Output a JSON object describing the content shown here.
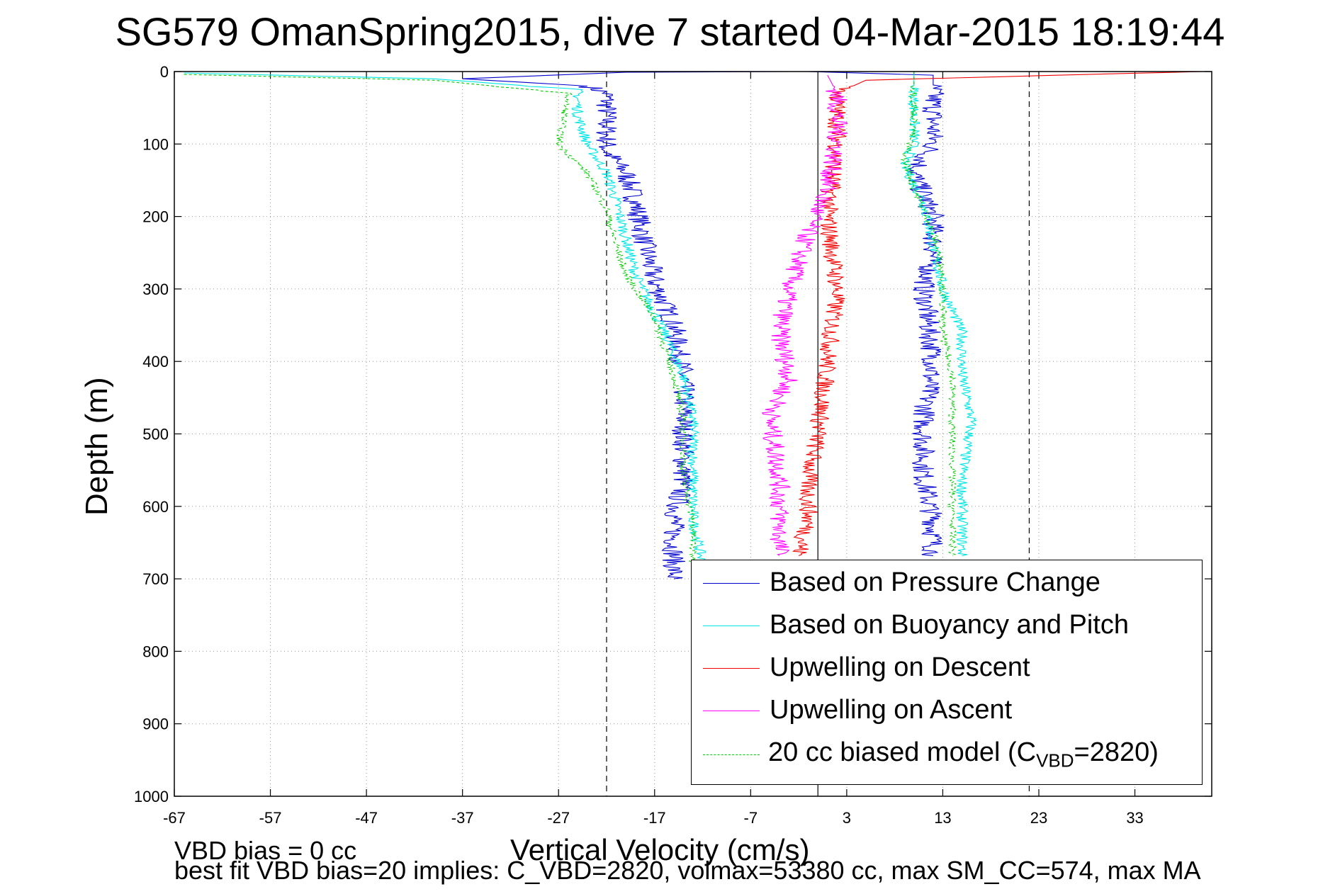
{
  "chart_data": {
    "type": "line",
    "title": "SG579 OmanSpring2015, dive 7 started 04-Mar-2015 18:19:44",
    "xlabel": "Vertical Velocity (cm/s)",
    "ylabel": "Depth (m)",
    "xlim": [
      -67,
      41
    ],
    "ylim": [
      0,
      1000
    ],
    "y_reversed": true,
    "grid": true,
    "legend_position": "bottom-right",
    "x_ticks": [
      "-67",
      "-57",
      "-47",
      "-37",
      "-27",
      "-17",
      "-7",
      "3",
      "13",
      "23",
      "33"
    ],
    "y_ticks": [
      "0",
      "100",
      "200",
      "300",
      "400",
      "500",
      "600",
      "700",
      "800",
      "900",
      "1000"
    ],
    "reference_lines": [
      {
        "x": -22,
        "style": "dashed"
      },
      {
        "x": 0,
        "style": "solid"
      },
      {
        "x": 22,
        "style": "dashed"
      }
    ],
    "series": [
      {
        "name": "Based on Pressure Change",
        "color": "#0000cc",
        "style": "solid",
        "noise": 1.2,
        "points": [
          [
            -3,
            0
          ],
          [
            -20,
            1
          ],
          [
            -37,
            10
          ],
          [
            -24,
            20
          ],
          [
            -22,
            30
          ],
          [
            -22,
            60
          ],
          [
            -22,
            110
          ],
          [
            -20,
            140
          ],
          [
            -19,
            180
          ],
          [
            -18,
            240
          ],
          [
            -17,
            290
          ],
          [
            -15,
            350
          ],
          [
            -14,
            420
          ],
          [
            -14,
            480
          ],
          [
            -14,
            560
          ],
          [
            -15,
            620
          ],
          [
            -15,
            700
          ]
        ],
        "points2": [
          [
            -1,
            0
          ],
          [
            12,
            5
          ],
          [
            12,
            100
          ],
          [
            10,
            140
          ],
          [
            12,
            200
          ],
          [
            12,
            250
          ],
          [
            11,
            300
          ],
          [
            12,
            400
          ],
          [
            11,
            480
          ],
          [
            11,
            560
          ],
          [
            12,
            620
          ],
          [
            12,
            668
          ]
        ]
      },
      {
        "name": "Based on Buoyancy and Pitch",
        "color": "#00e5e5",
        "style": "solid",
        "noise": 0.6,
        "points": [
          [
            -66,
            2
          ],
          [
            -40,
            10
          ],
          [
            -25,
            25
          ],
          [
            -25,
            60
          ],
          [
            -24,
            100
          ],
          [
            -22,
            140
          ],
          [
            -21,
            180
          ],
          [
            -20,
            230
          ],
          [
            -19,
            280
          ],
          [
            -16,
            360
          ],
          [
            -14,
            420
          ],
          [
            -13,
            480
          ],
          [
            -13,
            560
          ],
          [
            -13,
            620
          ],
          [
            -12,
            680
          ]
        ],
        "points2": [
          [
            10,
            0
          ],
          [
            10,
            100
          ],
          [
            9,
            130
          ],
          [
            11,
            180
          ],
          [
            12,
            240
          ],
          [
            13,
            300
          ],
          [
            15,
            360
          ],
          [
            15,
            420
          ],
          [
            16,
            480
          ],
          [
            15,
            560
          ],
          [
            15,
            620
          ],
          [
            15,
            668
          ]
        ]
      },
      {
        "name": "Upwelling on Descent",
        "color": "#ee0000",
        "style": "solid",
        "noise": 1.0,
        "points": [
          [
            40,
            0
          ],
          [
            28,
            4
          ],
          [
            5,
            12
          ],
          [
            2,
            30
          ],
          [
            2,
            100
          ],
          [
            1,
            200
          ],
          [
            2,
            300
          ],
          [
            1,
            400
          ],
          [
            0,
            500
          ],
          [
            -1,
            560
          ],
          [
            -1,
            620
          ],
          [
            -2,
            668
          ]
        ]
      },
      {
        "name": "Upwelling on Ascent",
        "color": "#ff00ff",
        "style": "solid",
        "noise": 1.1,
        "points": [
          [
            1,
            5
          ],
          [
            2,
            30
          ],
          [
            2,
            100
          ],
          [
            1,
            160
          ],
          [
            -1,
            220
          ],
          [
            -3,
            300
          ],
          [
            -4,
            360
          ],
          [
            -3,
            420
          ],
          [
            -5,
            480
          ],
          [
            -4,
            560
          ],
          [
            -4,
            620
          ],
          [
            -4,
            668
          ]
        ]
      },
      {
        "name": "20 cc biased model (C_VBD=2820)",
        "color": "#00cc00",
        "style": "dashed",
        "noise": 0.4,
        "points": [
          [
            -66,
            4
          ],
          [
            -40,
            12
          ],
          [
            -26,
            30
          ],
          [
            -27,
            100
          ],
          [
            -24,
            140
          ],
          [
            -22,
            190
          ],
          [
            -21,
            240
          ],
          [
            -20,
            280
          ],
          [
            -17,
            340
          ],
          [
            -15,
            420
          ],
          [
            -14,
            480
          ],
          [
            -14,
            560
          ],
          [
            -13,
            620
          ],
          [
            -13,
            680
          ]
        ],
        "points2": [
          [
            10,
            0
          ],
          [
            10,
            80
          ],
          [
            9,
            120
          ],
          [
            10,
            160
          ],
          [
            12,
            220
          ],
          [
            13,
            280
          ],
          [
            13,
            360
          ],
          [
            14,
            420
          ],
          [
            14,
            480
          ],
          [
            14,
            560
          ],
          [
            14,
            620
          ],
          [
            14,
            668
          ]
        ]
      }
    ]
  },
  "legend": {
    "items": [
      {
        "label": "Based on Pressure Change",
        "color": "#0000cc"
      },
      {
        "label": "Based on Buoyancy and Pitch",
        "color": "#00e5e5"
      },
      {
        "label": "Upwelling on Descent",
        "color": "#ee0000"
      },
      {
        "label": "Upwelling on Ascent",
        "color": "#ff00ff"
      }
    ],
    "model": {
      "prefix": "20 cc biased model (C",
      "sub": "VBD",
      "suffix": "=2820)",
      "color": "#00cc00"
    }
  },
  "footer": {
    "line1": "VBD bias = 0 cc",
    "line2": "best fit VBD bias=20 implies: C_VBD=2820, volmax=53380 cc, max SM_CC=574, max MA"
  }
}
